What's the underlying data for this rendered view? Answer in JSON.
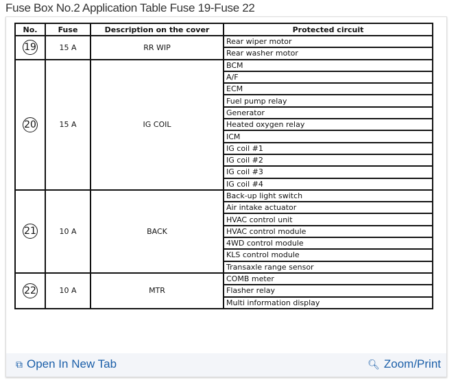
{
  "title": "Fuse Box No.2 Application Table Fuse 19-Fuse 22",
  "headers": [
    "No.",
    "Fuse",
    "Description on the cover",
    "Protected circuit"
  ],
  "rows": [
    {
      "no": "19",
      "fuse": "15 A",
      "desc": "RR WIP",
      "circuits": [
        "Rear wiper motor",
        "Rear washer motor"
      ]
    },
    {
      "no": "20",
      "fuse": "15 A",
      "desc": "IG COIL",
      "circuits": [
        "BCM",
        "A/F",
        "ECM",
        "Fuel pump relay",
        "Generator",
        "Heated oxygen relay",
        "ICM",
        "IG coil #1",
        "IG coil #2",
        "IG coil #3",
        "IG coil #4"
      ]
    },
    {
      "no": "21",
      "fuse": "10 A",
      "desc": "BACK",
      "circuits": [
        "Back-up light switch",
        "Air intake actuator",
        "HVAC control unit",
        "HVAC control module",
        "4WD control module",
        "KLS control module",
        "Transaxle range sensor"
      ]
    },
    {
      "no": "22",
      "fuse": "10 A",
      "desc": "MTR",
      "circuits": [
        "COMB meter",
        "Flasher relay",
        "Multi information display"
      ]
    }
  ],
  "footer": {
    "open_label": "Open In New Tab",
    "zoom_label": "Zoom/Print",
    "link_color": "#1a5ea8"
  }
}
